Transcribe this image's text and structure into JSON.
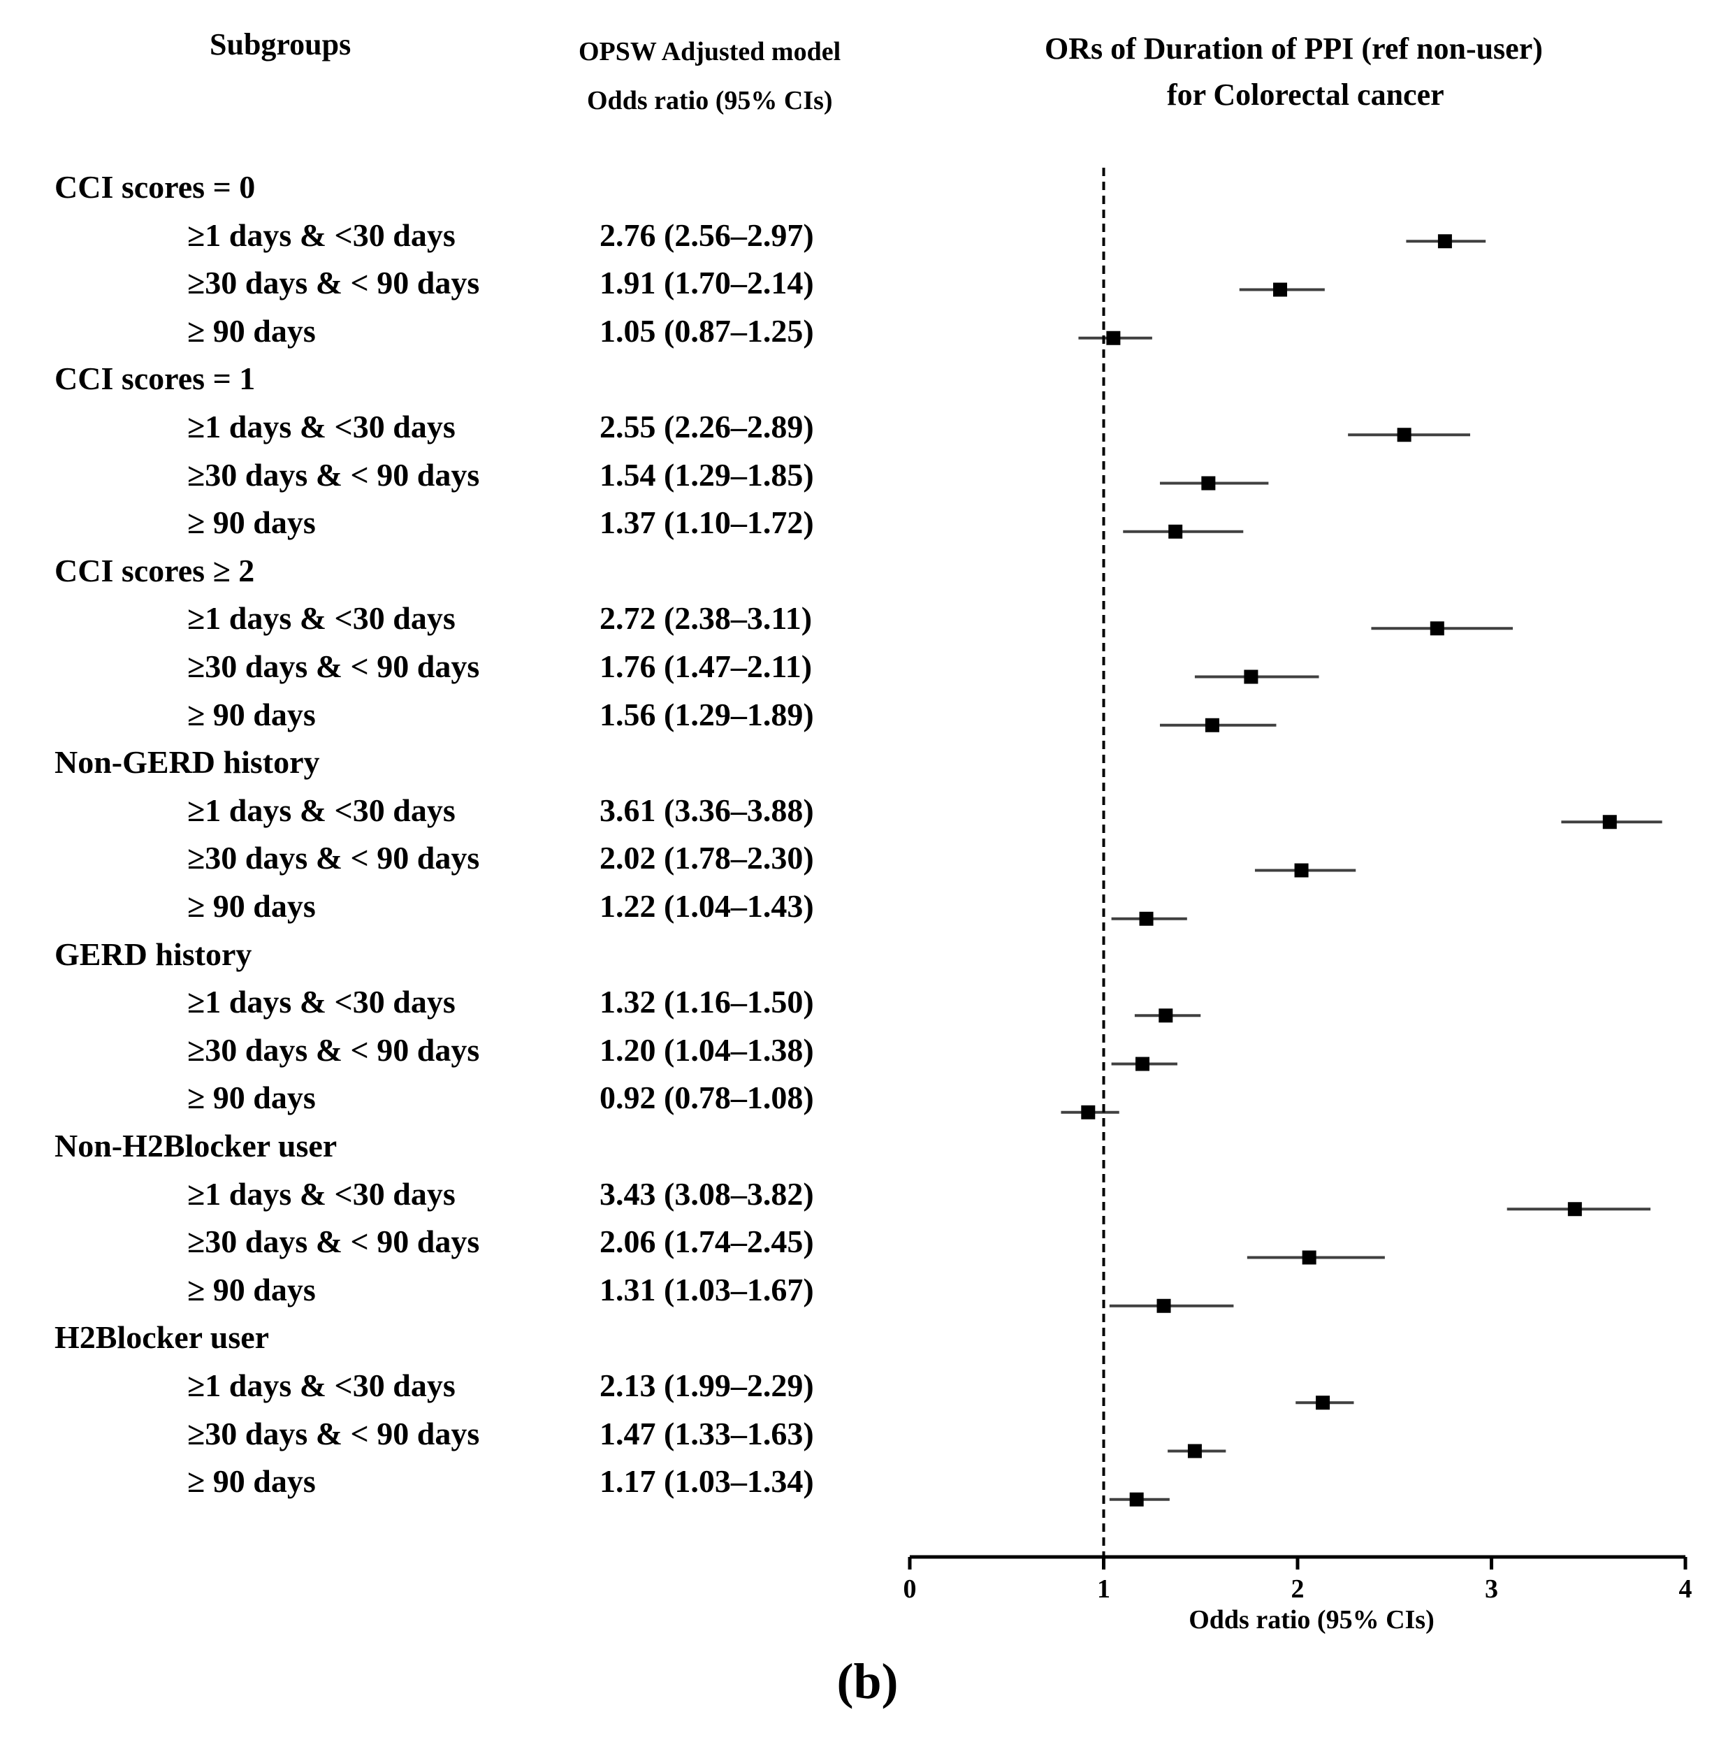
{
  "headers": {
    "subgroups": "Subgroups",
    "model_line1": "OPSW Adjusted model",
    "model_line2": "Odds ratio (95% CIs)",
    "plot_line1": "ORs of Duration of PPI (ref non-user)",
    "plot_line2": "for Colorectal cancer"
  },
  "caption": "(b)",
  "chart_data": {
    "type": "forest",
    "title": "ORs of Duration of PPI (ref non-user) for Colorectal cancer",
    "xlabel": "Odds ratio (95% CIs)",
    "xlim": [
      0,
      4
    ],
    "xticks": [
      "0",
      "1",
      "2",
      "3",
      "4"
    ],
    "reference_line": 1,
    "groups": [
      {
        "label": "CCI scores = 0",
        "rows": [
          {
            "label": "≥1 days & <30 days",
            "text": "2.76 (2.56–2.97)",
            "or": 2.76,
            "lo": 2.56,
            "hi": 2.97
          },
          {
            "label": "≥30 days & < 90 days",
            "text": "1.91 (1.70–2.14)",
            "or": 1.91,
            "lo": 1.7,
            "hi": 2.14
          },
          {
            "label": "≥ 90 days",
            "text": "1.05 (0.87–1.25)",
            "or": 1.05,
            "lo": 0.87,
            "hi": 1.25
          }
        ]
      },
      {
        "label": "CCI scores = 1",
        "rows": [
          {
            "label": "≥1 days & <30 days",
            "text": "2.55 (2.26–2.89)",
            "or": 2.55,
            "lo": 2.26,
            "hi": 2.89
          },
          {
            "label": "≥30 days & < 90 days",
            "text": "1.54 (1.29–1.85)",
            "or": 1.54,
            "lo": 1.29,
            "hi": 1.85
          },
          {
            "label": "≥ 90 days",
            "text": "1.37 (1.10–1.72)",
            "or": 1.37,
            "lo": 1.1,
            "hi": 1.72
          }
        ]
      },
      {
        "label": "CCI scores ≥ 2",
        "rows": [
          {
            "label": "≥1 days & <30 days",
            "text": "2.72 (2.38–3.11)",
            "or": 2.72,
            "lo": 2.38,
            "hi": 3.11
          },
          {
            "label": "≥30 days & < 90 days",
            "text": "1.76 (1.47–2.11)",
            "or": 1.76,
            "lo": 1.47,
            "hi": 2.11
          },
          {
            "label": "≥ 90 days",
            "text": "1.56 (1.29–1.89)",
            "or": 1.56,
            "lo": 1.29,
            "hi": 1.89
          }
        ]
      },
      {
        "label": "Non-GERD history",
        "rows": [
          {
            "label": "≥1 days & <30 days",
            "text": "3.61 (3.36–3.88)",
            "or": 3.61,
            "lo": 3.36,
            "hi": 3.88
          },
          {
            "label": "≥30 days & < 90 days",
            "text": "2.02 (1.78–2.30)",
            "or": 2.02,
            "lo": 1.78,
            "hi": 2.3
          },
          {
            "label": "≥ 90 days",
            "text": "1.22 (1.04–1.43)",
            "or": 1.22,
            "lo": 1.04,
            "hi": 1.43
          }
        ]
      },
      {
        "label": "GERD history",
        "rows": [
          {
            "label": "≥1 days & <30 days",
            "text": "1.32 (1.16–1.50)",
            "or": 1.32,
            "lo": 1.16,
            "hi": 1.5
          },
          {
            "label": "≥30 days & < 90 days",
            "text": "1.20 (1.04–1.38)",
            "or": 1.2,
            "lo": 1.04,
            "hi": 1.38
          },
          {
            "label": "≥ 90 days",
            "text": "0.92 (0.78–1.08)",
            "or": 0.92,
            "lo": 0.78,
            "hi": 1.08
          }
        ]
      },
      {
        "label": "Non-H2Blocker user",
        "rows": [
          {
            "label": "≥1 days & <30 days",
            "text": "3.43 (3.08–3.82)",
            "or": 3.43,
            "lo": 3.08,
            "hi": 3.82
          },
          {
            "label": "≥30 days & < 90 days",
            "text": "2.06 (1.74–2.45)",
            "or": 2.06,
            "lo": 1.74,
            "hi": 2.45
          },
          {
            "label": "≥ 90 days",
            "text": "1.31 (1.03–1.67)",
            "or": 1.31,
            "lo": 1.03,
            "hi": 1.67
          }
        ]
      },
      {
        "label": "H2Blocker user",
        "rows": [
          {
            "label": "≥1 days & <30 days",
            "text": "2.13 (1.99–2.29)",
            "or": 2.13,
            "lo": 1.99,
            "hi": 2.29
          },
          {
            "label": "≥30 days & < 90 days",
            "text": "1.47 (1.33–1.63)",
            "or": 1.47,
            "lo": 1.33,
            "hi": 1.63
          },
          {
            "label": "≥ 90 days",
            "text": "1.17 (1.03–1.34)",
            "or": 1.17,
            "lo": 1.03,
            "hi": 1.34
          }
        ]
      }
    ]
  }
}
